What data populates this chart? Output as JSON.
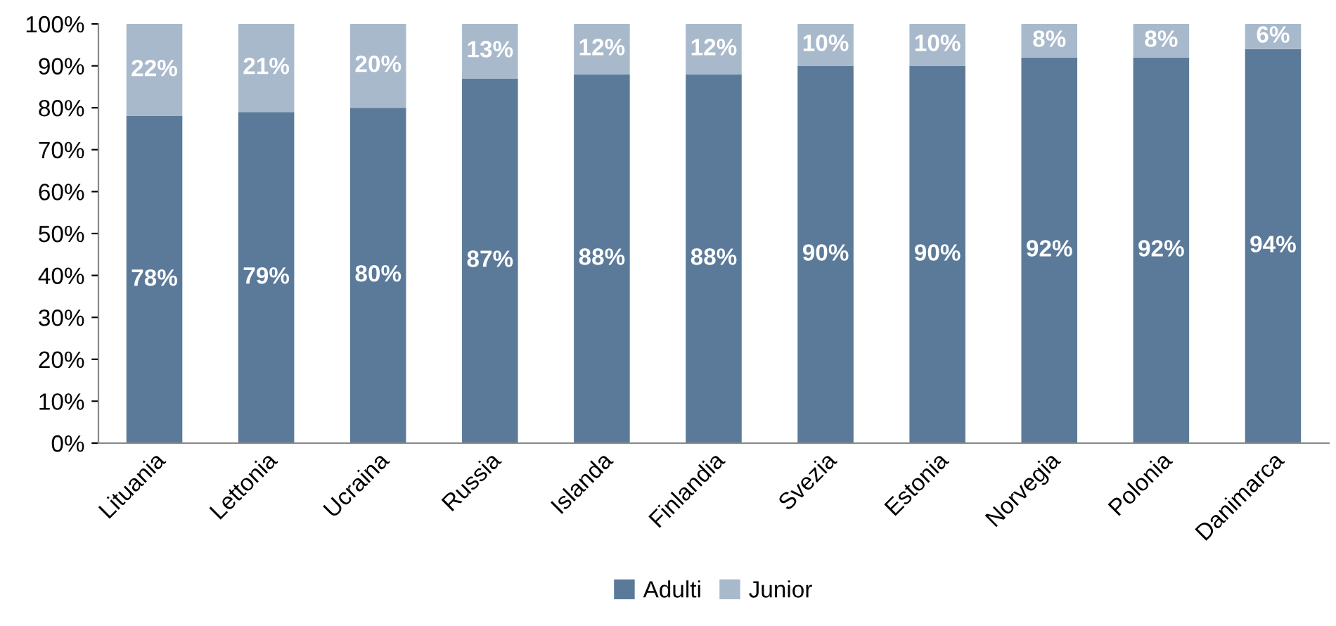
{
  "chart_data": {
    "type": "bar",
    "stacked": true,
    "categories": [
      "Lituania",
      "Lettonia",
      "Ucraina",
      "Russia",
      "Islanda",
      "Finlandia",
      "Svezia",
      "Estonia",
      "Norvegia",
      "Polonia",
      "Danimarca"
    ],
    "series": [
      {
        "name": "Adulti",
        "color": "#5b7a99",
        "values": [
          78,
          79,
          80,
          87,
          88,
          88,
          90,
          90,
          92,
          92,
          94
        ],
        "value_labels": [
          "78%",
          "79%",
          "80%",
          "87%",
          "88%",
          "88%",
          "90%",
          "90%",
          "92%",
          "92%",
          "94%"
        ]
      },
      {
        "name": "Junior",
        "color": "#a9b9cc",
        "values": [
          22,
          21,
          20,
          13,
          12,
          12,
          10,
          10,
          8,
          8,
          6
        ],
        "value_labels": [
          "22%",
          "21%",
          "20%",
          "13%",
          "12%",
          "12%",
          "10%",
          "10%",
          "8%",
          "8%",
          "6%"
        ]
      }
    ],
    "ylim": [
      0,
      100
    ],
    "yticks": [
      {
        "value": 0,
        "label": "0%"
      },
      {
        "value": 10,
        "label": "10%"
      },
      {
        "value": 20,
        "label": "20%"
      },
      {
        "value": 30,
        "label": "30%"
      },
      {
        "value": 40,
        "label": "40%"
      },
      {
        "value": 50,
        "label": "50%"
      },
      {
        "value": 60,
        "label": "60%"
      },
      {
        "value": 70,
        "label": "70%"
      },
      {
        "value": 80,
        "label": "80%"
      },
      {
        "value": 90,
        "label": "90%"
      },
      {
        "value": 100,
        "label": "100%"
      }
    ],
    "grid": false,
    "legend": "bottom"
  }
}
